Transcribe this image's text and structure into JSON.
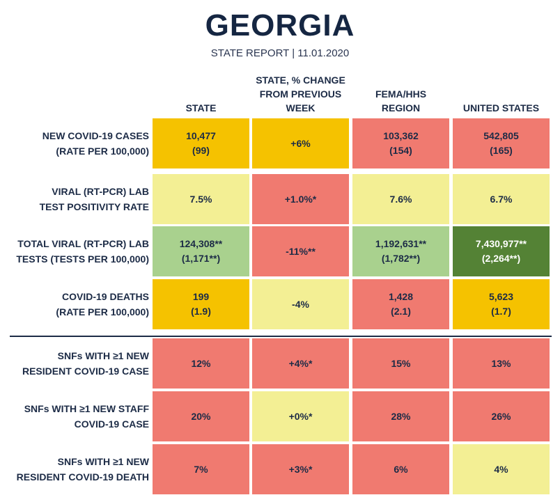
{
  "header": {
    "title": "GEORGIA",
    "subtitle": "STATE REPORT | 11.01.2020"
  },
  "columns": [
    "STATE",
    "STATE, % CHANGE\nFROM PREVIOUS\nWEEK",
    "FEMA/HHS\nREGION",
    "UNITED STATES"
  ],
  "colors": {
    "orange": "#f5c200",
    "red": "#f07a70",
    "yellow": "#f3ef94",
    "light_green": "#a9d18e",
    "dark_green": "#548235"
  },
  "rows": [
    {
      "label": "NEW COVID-19 CASES\n(RATE PER 100,000)",
      "cells": [
        {
          "text": "10,477\n(99)",
          "color": "orange"
        },
        {
          "text": "+6%",
          "color": "orange"
        },
        {
          "text": "103,362\n(154)",
          "color": "red"
        },
        {
          "text": "542,805\n(165)",
          "color": "red"
        }
      ]
    },
    {
      "label": "VIRAL (RT-PCR) LAB\nTEST POSITIVITY RATE",
      "cells": [
        {
          "text": "7.5%",
          "color": "yellow"
        },
        {
          "text": "+1.0%*",
          "color": "red"
        },
        {
          "text": "7.6%",
          "color": "yellow"
        },
        {
          "text": "6.7%",
          "color": "yellow"
        }
      ]
    },
    {
      "label": "TOTAL VIRAL (RT-PCR) LAB\nTESTS (TESTS PER 100,000)",
      "cells": [
        {
          "text": "124,308**\n(1,171**)",
          "color": "light_green"
        },
        {
          "text": "-11%**",
          "color": "red"
        },
        {
          "text": "1,192,631**\n(1,782**)",
          "color": "light_green"
        },
        {
          "text": "7,430,977**\n(2,264**)",
          "color": "dark_green"
        }
      ]
    },
    {
      "label": "COVID-19 DEATHS\n(RATE PER 100,000)",
      "cells": [
        {
          "text": "199\n(1.9)",
          "color": "orange"
        },
        {
          "text": "-4%",
          "color": "yellow"
        },
        {
          "text": "1,428\n(2.1)",
          "color": "red"
        },
        {
          "text": "5,623\n(1.7)",
          "color": "orange"
        }
      ]
    },
    {
      "label": "SNFs WITH ≥1 NEW\nRESIDENT COVID-19 CASE",
      "cells": [
        {
          "text": "12%",
          "color": "red"
        },
        {
          "text": "+4%*",
          "color": "red"
        },
        {
          "text": "15%",
          "color": "red"
        },
        {
          "text": "13%",
          "color": "red"
        }
      ]
    },
    {
      "label": "SNFs WITH ≥1 NEW STAFF\nCOVID-19 CASE",
      "cells": [
        {
          "text": "20%",
          "color": "red"
        },
        {
          "text": "+0%*",
          "color": "yellow"
        },
        {
          "text": "28%",
          "color": "red"
        },
        {
          "text": "26%",
          "color": "red"
        }
      ]
    },
    {
      "label": "SNFs WITH ≥1 NEW\nRESIDENT COVID-19 DEATH",
      "cells": [
        {
          "text": "7%",
          "color": "red"
        },
        {
          "text": "+3%*",
          "color": "red"
        },
        {
          "text": "6%",
          "color": "red"
        },
        {
          "text": "4%",
          "color": "yellow"
        }
      ]
    }
  ]
}
